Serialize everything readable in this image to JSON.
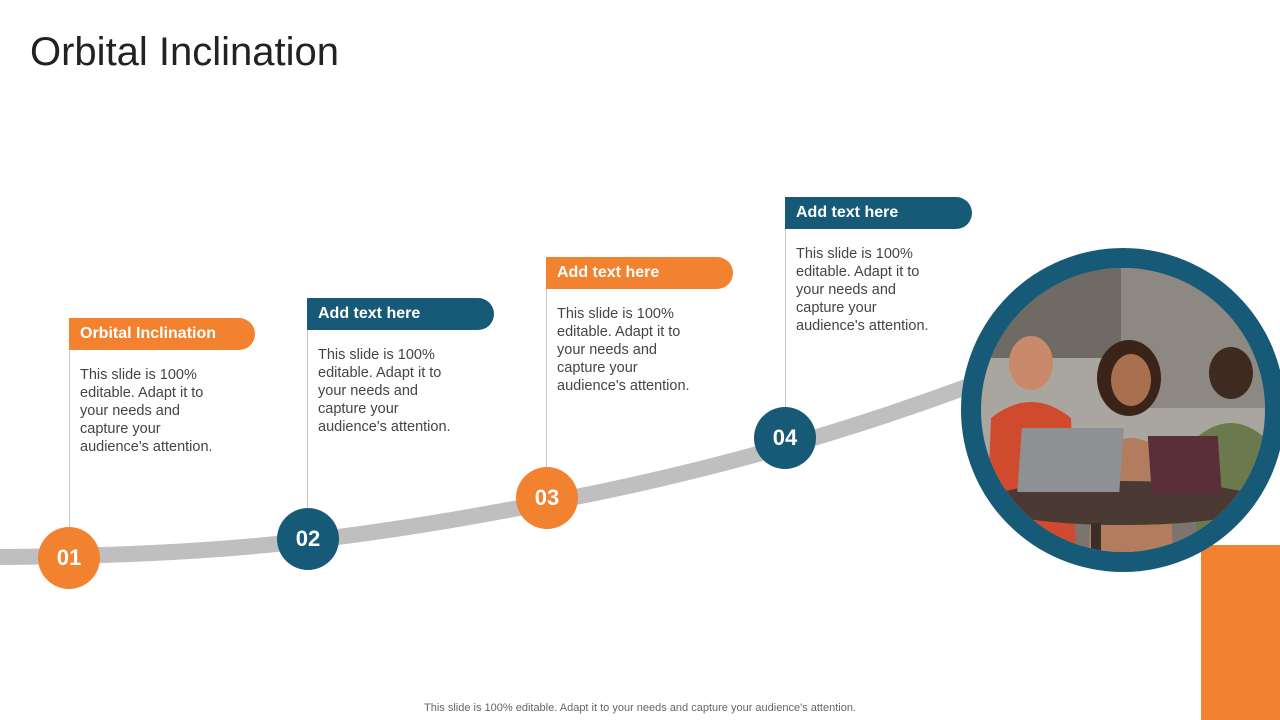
{
  "title": "Orbital Inclination",
  "steps": [
    {
      "number": "01",
      "heading": "Orbital Inclination",
      "text": "This slide is 100% editable. Adapt it to your needs and capture your audience's attention."
    },
    {
      "number": "02",
      "heading": "Add text here",
      "text": "This slide is 100% editable. Adapt it to your needs and capture your audience's attention."
    },
    {
      "number": "03",
      "heading": "Add text here",
      "text": "This slide is 100% editable. Adapt it to your needs and capture your audience's attention."
    },
    {
      "number": "04",
      "heading": "Add text here",
      "text": "This slide is 100% editable. Adapt it to your needs and capture your audience's attention."
    }
  ],
  "footer": "This slide is 100% editable. Adapt it to your needs and capture your audience's attention.",
  "colors": {
    "orange": "#f28130",
    "blue": "#175a78",
    "curve": "#bfbfbf"
  }
}
